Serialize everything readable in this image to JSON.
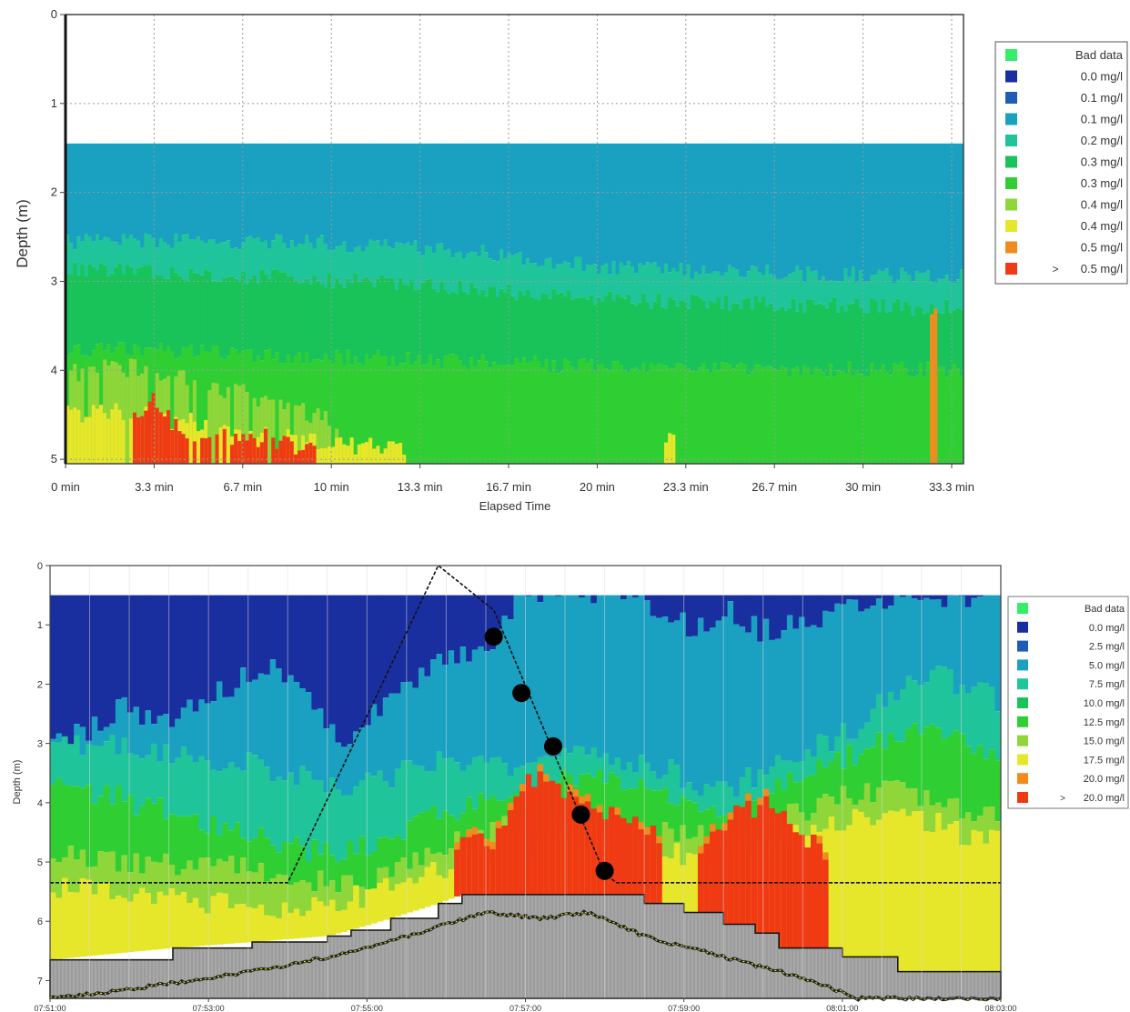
{
  "chart_data": [
    {
      "type": "heatmap",
      "ylabel": "Depth (m)",
      "xlabel": "Elapsed Time",
      "x_ticks": [
        "0 min",
        "3.3 min",
        "6.7 min",
        "10 min",
        "13.3 min",
        "16.7 min",
        "20 min",
        "23.3 min",
        "26.7 min",
        "30 min",
        "33.3 min"
      ],
      "x_range": [
        0,
        34.4
      ],
      "y_ticks": [
        "0",
        "1",
        "2",
        "3",
        "4",
        "5"
      ],
      "y_range": [
        0,
        5.05
      ],
      "grid": true,
      "legend_position": "right",
      "legend": [
        {
          "prefix": "",
          "label": "Bad data",
          "color": "#33ee66"
        },
        {
          "prefix": "",
          "label": "0.0 mg/l",
          "color": "#1a2f9f"
        },
        {
          "prefix": "",
          "label": "0.1 mg/l",
          "color": "#1f5cb8"
        },
        {
          "prefix": "",
          "label": "0.1 mg/l",
          "color": "#1aa0c0"
        },
        {
          "prefix": "",
          "label": "0.2 mg/l",
          "color": "#1fc49a"
        },
        {
          "prefix": "",
          "label": "0.3 mg/l",
          "color": "#19c35a"
        },
        {
          "prefix": "",
          "label": "0.3 mg/l",
          "color": "#2fcf33"
        },
        {
          "prefix": "",
          "label": "0.4 mg/l",
          "color": "#8ed63a"
        },
        {
          "prefix": "",
          "label": "0.4 mg/l",
          "color": "#e6e62a"
        },
        {
          "prefix": "",
          "label": "0.5 mg/l",
          "color": "#f08c1e"
        },
        {
          "prefix": ">",
          "label": "0.5 mg/l",
          "color": "#f03a14"
        }
      ],
      "data_top_depth": 1.45,
      "depth_bands": [
        {
          "class_index": 3,
          "top_depth": 1.45,
          "bottom_depth_profile": [
            [
              0,
              2.55
            ],
            [
              9,
              2.55
            ],
            [
              17,
              2.7
            ],
            [
              19,
              2.8
            ],
            [
              25,
              2.9
            ],
            [
              34.4,
              2.95
            ]
          ]
        },
        {
          "class_index": 4,
          "bottom_depth_profile": [
            [
              0,
              2.85
            ],
            [
              8,
              2.95
            ],
            [
              14,
              3.05
            ],
            [
              20,
              3.2
            ],
            [
              34.4,
              3.3
            ]
          ]
        },
        {
          "class_index": 5,
          "bottom_depth_profile": [
            [
              0,
              3.75
            ],
            [
              10,
              3.85
            ],
            [
              20,
              3.95
            ],
            [
              34.4,
              4.0
            ]
          ]
        },
        {
          "class_index": 6,
          "bottom_depth": 5.05
        }
      ],
      "patches": [
        {
          "x": [
            0,
            10.5
          ],
          "y_top_profile": [
            [
              0,
              4.05
            ],
            [
              2,
              3.95
            ],
            [
              4,
              4.05
            ],
            [
              6,
              4.2
            ],
            [
              8,
              4.35
            ],
            [
              10.5,
              4.6
            ]
          ],
          "class_index": 7
        },
        {
          "x": [
            0,
            13.0
          ],
          "y_top_profile": [
            [
              0,
              4.5
            ],
            [
              2,
              4.45
            ],
            [
              4,
              4.55
            ],
            [
              6,
              4.65
            ],
            [
              8,
              4.75
            ],
            [
              10,
              4.8
            ],
            [
              13,
              4.9
            ]
          ],
          "class_index": 8
        },
        {
          "x": [
            2.6,
            9.6
          ],
          "y_top_profile": [
            [
              2.6,
              4.55
            ],
            [
              3.4,
              4.35
            ],
            [
              4.5,
              4.75
            ],
            [
              5.5,
              4.7
            ],
            [
              6.5,
              4.8
            ],
            [
              7.5,
              4.75
            ],
            [
              9.6,
              4.9
            ]
          ],
          "class_index": 10
        },
        {
          "x": [
            22.9,
            23.3
          ],
          "y_top_profile": [
            [
              22.9,
              4.75
            ],
            [
              23.3,
              4.75
            ]
          ],
          "class_index": 8
        },
        {
          "x": [
            33.1,
            33.4
          ],
          "y_top_profile": [
            [
              33.1,
              3.4
            ],
            [
              33.4,
              3.4
            ]
          ],
          "class_index": 9
        }
      ]
    },
    {
      "type": "heatmap",
      "ylabel": "Depth (m)",
      "x_ticks": [
        "07:51:00",
        "07:53:00",
        "07:55:00",
        "07:57:00",
        "07:59:00",
        "08:01:00",
        "08:03:00"
      ],
      "x_range": [
        "07:51:00",
        "08:03:00"
      ],
      "y_ticks": [
        "0",
        "1",
        "2",
        "3",
        "4",
        "5",
        "6",
        "7"
      ],
      "y_range": [
        0,
        7.3
      ],
      "grid": true,
      "legend_position": "right",
      "legend": [
        {
          "prefix": "",
          "label": "Bad data",
          "color": "#33ee66"
        },
        {
          "prefix": "",
          "label": "0.0 mg/l",
          "color": "#1a2f9f"
        },
        {
          "prefix": "",
          "label": "2.5 mg/l",
          "color": "#1f5cb8"
        },
        {
          "prefix": "",
          "label": "5.0 mg/l",
          "color": "#1aa0c0"
        },
        {
          "prefix": "",
          "label": "7.5 mg/l",
          "color": "#1fc49a"
        },
        {
          "prefix": "",
          "label": "10.0 mg/l",
          "color": "#19c35a"
        },
        {
          "prefix": "",
          "label": "12.5 mg/l",
          "color": "#2fcf33"
        },
        {
          "prefix": "",
          "label": "15.0 mg/l",
          "color": "#8ed63a"
        },
        {
          "prefix": "",
          "label": "17.5 mg/l",
          "color": "#e6e62a"
        },
        {
          "prefix": "",
          "label": "20.0 mg/l",
          "color": "#f08c1e"
        },
        {
          "prefix": ">",
          "label": "20.0 mg/l",
          "color": "#f03a14"
        }
      ],
      "data_top_depth": 0.5,
      "layers": [
        {
          "class_index": 1,
          "bottom_depth_profile": [
            [
              0,
              2.8
            ],
            [
              0.4,
              2.9
            ],
            [
              0.9,
              2.4
            ],
            [
              1.6,
              2.6
            ],
            [
              2.3,
              2.0
            ],
            [
              2.7,
              1.7
            ],
            [
              3.3,
              2.2
            ],
            [
              3.7,
              3.0
            ],
            [
              4.2,
              2.4
            ],
            [
              4.7,
              1.8
            ],
            [
              5.2,
              1.5
            ],
            [
              5.6,
              1.2
            ],
            [
              5.9,
              0.5
            ],
            [
              7.4,
              0.5
            ],
            [
              7.7,
              0.9
            ],
            [
              8.1,
              1.0
            ],
            [
              8.6,
              0.8
            ],
            [
              9.0,
              1.1
            ],
            [
              9.7,
              0.9
            ],
            [
              10.3,
              0.7
            ],
            [
              10.6,
              0.5
            ],
            [
              12,
              0.5
            ]
          ]
        },
        {
          "class_index": 3,
          "bottom_depth_profile": [
            [
              0,
              3.05
            ],
            [
              0.8,
              3.0
            ],
            [
              1.6,
              3.2
            ],
            [
              2.3,
              3.3
            ],
            [
              3.0,
              3.5
            ],
            [
              3.6,
              3.8
            ],
            [
              4.2,
              3.6
            ],
            [
              4.8,
              3.3
            ],
            [
              5.3,
              3.3
            ],
            [
              5.9,
              3.4
            ],
            [
              6.3,
              3.2
            ],
            [
              6.7,
              3.0
            ],
            [
              7.3,
              3.3
            ],
            [
              7.9,
              3.5
            ],
            [
              8.3,
              3.9
            ],
            [
              8.7,
              3.7
            ],
            [
              9.1,
              3.4
            ],
            [
              9.6,
              3.1
            ],
            [
              10.1,
              2.8
            ],
            [
              10.6,
              2.2
            ],
            [
              11.0,
              1.8
            ],
            [
              11.5,
              2.0
            ],
            [
              12,
              2.3
            ]
          ]
        },
        {
          "class_index": 4,
          "bottom_depth_profile": [
            [
              0,
              3.75
            ],
            [
              0.8,
              3.9
            ],
            [
              1.6,
              4.2
            ],
            [
              2.3,
              4.5
            ],
            [
              3.0,
              4.7
            ],
            [
              3.6,
              4.9
            ],
            [
              4.2,
              4.6
            ],
            [
              4.8,
              4.3
            ],
            [
              5.3,
              4.0
            ],
            [
              5.8,
              3.8
            ],
            [
              6.3,
              3.7
            ],
            [
              6.7,
              3.5
            ],
            [
              7.3,
              3.7
            ],
            [
              7.9,
              4.0
            ],
            [
              8.3,
              4.2
            ],
            [
              8.7,
              4.1
            ],
            [
              9.1,
              3.8
            ],
            [
              9.6,
              3.5
            ],
            [
              10.1,
              3.2
            ],
            [
              10.6,
              2.9
            ],
            [
              11.0,
              2.7
            ],
            [
              11.5,
              3.0
            ],
            [
              12,
              3.2
            ]
          ]
        },
        {
          "class_index": 6,
          "bottom_depth_profile": [
            [
              0,
              4.9
            ],
            [
              1.2,
              5.0
            ],
            [
              2.3,
              5.1
            ],
            [
              3.0,
              5.25
            ],
            [
              3.6,
              5.4
            ],
            [
              4.2,
              5.2
            ],
            [
              4.8,
              4.9
            ],
            [
              5.3,
              4.6
            ],
            [
              5.8,
              4.4
            ],
            [
              6.3,
              4.3
            ],
            [
              6.7,
              4.2
            ],
            [
              7.3,
              4.4
            ],
            [
              7.9,
              4.5
            ],
            [
              8.3,
              4.6
            ],
            [
              8.7,
              4.5
            ],
            [
              9.1,
              4.3
            ],
            [
              9.6,
              4.1
            ],
            [
              10.1,
              3.9
            ],
            [
              10.6,
              3.8
            ],
            [
              11.0,
              3.9
            ],
            [
              11.5,
              4.1
            ],
            [
              12,
              4.2
            ]
          ]
        },
        {
          "class_index": 7,
          "bottom_depth_profile": [
            [
              0,
              5.4
            ],
            [
              1.2,
              5.55
            ],
            [
              2.3,
              5.7
            ],
            [
              3.0,
              5.8
            ],
            [
              3.6,
              5.7
            ],
            [
              4.2,
              5.5
            ],
            [
              4.8,
              5.2
            ],
            [
              5.3,
              4.95
            ],
            [
              5.8,
              4.8
            ],
            [
              6.3,
              4.7
            ],
            [
              6.7,
              4.6
            ],
            [
              7.3,
              4.7
            ],
            [
              7.9,
              4.85
            ],
            [
              8.3,
              5.0
            ],
            [
              8.7,
              4.9
            ],
            [
              9.1,
              4.7
            ],
            [
              9.6,
              4.5
            ],
            [
              10.1,
              4.3
            ],
            [
              10.6,
              4.2
            ],
            [
              11.0,
              4.3
            ],
            [
              11.5,
              4.5
            ],
            [
              12,
              4.6
            ]
          ]
        }
      ],
      "bottom_class_index": 8,
      "red_patches": [
        {
          "x": [
            5.1,
            7.7
          ],
          "top_depth_profile": [
            [
              5.1,
              4.8
            ],
            [
              5.6,
              4.6
            ],
            [
              5.85,
              3.9
            ],
            [
              6.2,
              3.5
            ],
            [
              6.55,
              3.8
            ],
            [
              6.8,
              4.1
            ],
            [
              7.2,
              4.2
            ],
            [
              7.7,
              4.6
            ]
          ]
        },
        {
          "x": [
            8.2,
            9.8
          ],
          "top_depth_profile": [
            [
              8.2,
              5.0
            ],
            [
              8.5,
              4.3
            ],
            [
              9.0,
              4.0
            ],
            [
              9.4,
              4.3
            ],
            [
              9.8,
              5.0
            ]
          ]
        }
      ],
      "stepped_bottom_profile": [
        [
          0,
          6.65
        ],
        [
          1.55,
          6.45
        ],
        [
          2.55,
          6.35
        ],
        [
          3.5,
          6.25
        ],
        [
          3.8,
          6.15
        ],
        [
          4.3,
          5.95
        ],
        [
          4.9,
          5.7
        ],
        [
          5.2,
          5.55
        ],
        [
          7.0,
          5.55
        ],
        [
          7.5,
          5.7
        ],
        [
          8.0,
          5.85
        ],
        [
          8.5,
          6.05
        ],
        [
          8.9,
          6.2
        ],
        [
          9.2,
          6.45
        ],
        [
          10.0,
          6.6
        ],
        [
          10.7,
          6.85
        ],
        [
          12,
          6.85
        ]
      ],
      "transducer_track": [
        [
          0,
          7.3
        ],
        [
          1.0,
          7.15
        ],
        [
          2.0,
          6.95
        ],
        [
          3.0,
          6.75
        ],
        [
          4.0,
          6.45
        ],
        [
          5.0,
          6.05
        ],
        [
          5.5,
          5.85
        ],
        [
          6.2,
          5.95
        ],
        [
          6.8,
          5.85
        ],
        [
          7.5,
          6.25
        ],
        [
          8.5,
          6.6
        ],
        [
          9.5,
          6.95
        ],
        [
          10.2,
          7.3
        ],
        [
          12,
          7.3
        ]
      ],
      "cast_line": [
        [
          0,
          5.35
        ],
        [
          3.0,
          5.35
        ],
        [
          4.9,
          0
        ],
        [
          5.6,
          0.75
        ],
        [
          7.0,
          5.2
        ],
        [
          7.15,
          5.35
        ],
        [
          12,
          5.35
        ]
      ],
      "sample_points": [
        {
          "x": 5.6,
          "depth": 1.2
        },
        {
          "x": 5.95,
          "depth": 2.15
        },
        {
          "x": 6.35,
          "depth": 3.05
        },
        {
          "x": 6.7,
          "depth": 4.2
        },
        {
          "x": 7.0,
          "depth": 5.15
        }
      ]
    }
  ]
}
